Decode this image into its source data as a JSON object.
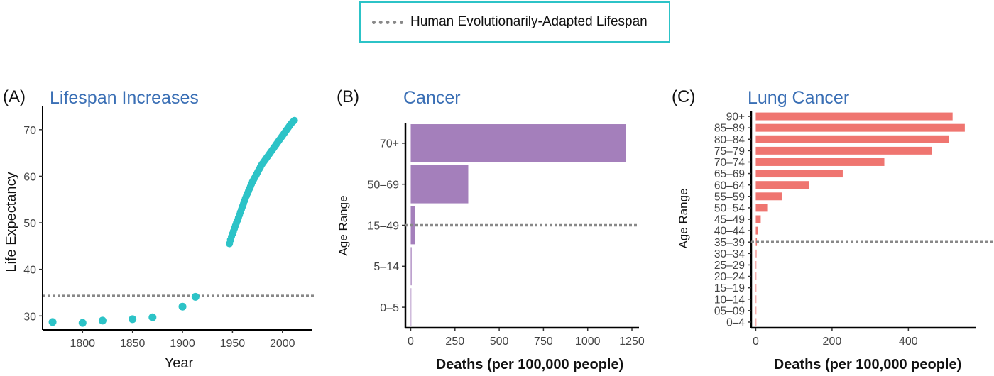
{
  "legend": {
    "label": "Human Evolutionarily-Adapted Lifespan",
    "line_color": "#888888",
    "border_color": "#2cc3c7"
  },
  "chart_data": [
    {
      "type": "scatter",
      "panel_label": "(A)",
      "title": "Lifespan Increases",
      "xlabel": "Year",
      "ylabel": "Life Expectancy",
      "xlim": [
        1760,
        2030
      ],
      "ylim": [
        27,
        75
      ],
      "xticks": [
        1800,
        1850,
        1900,
        1950,
        2000
      ],
      "yticks": [
        30,
        40,
        50,
        60,
        70
      ],
      "color": "#2cc3c7",
      "reference_line": 34.3,
      "points": [
        {
          "x": 1770,
          "y": 28.7
        },
        {
          "x": 1800,
          "y": 28.5
        },
        {
          "x": 1820,
          "y": 29.0
        },
        {
          "x": 1850,
          "y": 29.3
        },
        {
          "x": 1870,
          "y": 29.7
        },
        {
          "x": 1900,
          "y": 32.0
        },
        {
          "x": 1913,
          "y": 34.1
        },
        {
          "x": 1947,
          "y": 45.5
        },
        {
          "x": 1948,
          "y": 46.3
        },
        {
          "x": 1949,
          "y": 47.0
        },
        {
          "x": 1950,
          "y": 47.6
        },
        {
          "x": 1951,
          "y": 48.2
        },
        {
          "x": 1952,
          "y": 48.8
        },
        {
          "x": 1953,
          "y": 49.4
        },
        {
          "x": 1954,
          "y": 50.0
        },
        {
          "x": 1955,
          "y": 50.5
        },
        {
          "x": 1956,
          "y": 51.1
        },
        {
          "x": 1957,
          "y": 51.7
        },
        {
          "x": 1958,
          "y": 52.3
        },
        {
          "x": 1959,
          "y": 52.9
        },
        {
          "x": 1960,
          "y": 53.5
        },
        {
          "x": 1961,
          "y": 54.1
        },
        {
          "x": 1962,
          "y": 54.7
        },
        {
          "x": 1963,
          "y": 55.3
        },
        {
          "x": 1964,
          "y": 55.8
        },
        {
          "x": 1965,
          "y": 56.3
        },
        {
          "x": 1966,
          "y": 56.8
        },
        {
          "x": 1967,
          "y": 57.3
        },
        {
          "x": 1968,
          "y": 57.8
        },
        {
          "x": 1969,
          "y": 58.3
        },
        {
          "x": 1970,
          "y": 58.8
        },
        {
          "x": 1971,
          "y": 59.2
        },
        {
          "x": 1972,
          "y": 59.6
        },
        {
          "x": 1973,
          "y": 60.0
        },
        {
          "x": 1974,
          "y": 60.4
        },
        {
          "x": 1975,
          "y": 60.8
        },
        {
          "x": 1976,
          "y": 61.2
        },
        {
          "x": 1977,
          "y": 61.6
        },
        {
          "x": 1978,
          "y": 62.0
        },
        {
          "x": 1979,
          "y": 62.4
        },
        {
          "x": 1980,
          "y": 62.7
        },
        {
          "x": 1981,
          "y": 63.0
        },
        {
          "x": 1982,
          "y": 63.3
        },
        {
          "x": 1983,
          "y": 63.6
        },
        {
          "x": 1984,
          "y": 63.9
        },
        {
          "x": 1985,
          "y": 64.2
        },
        {
          "x": 1986,
          "y": 64.5
        },
        {
          "x": 1987,
          "y": 64.8
        },
        {
          "x": 1988,
          "y": 65.1
        },
        {
          "x": 1989,
          "y": 65.4
        },
        {
          "x": 1990,
          "y": 65.7
        },
        {
          "x": 1991,
          "y": 66.0
        },
        {
          "x": 1992,
          "y": 66.3
        },
        {
          "x": 1993,
          "y": 66.6
        },
        {
          "x": 1994,
          "y": 66.9
        },
        {
          "x": 1995,
          "y": 67.2
        },
        {
          "x": 1996,
          "y": 67.5
        },
        {
          "x": 1997,
          "y": 67.8
        },
        {
          "x": 1998,
          "y": 68.1
        },
        {
          "x": 1999,
          "y": 68.4
        },
        {
          "x": 2000,
          "y": 68.7
        },
        {
          "x": 2001,
          "y": 69.0
        },
        {
          "x": 2002,
          "y": 69.3
        },
        {
          "x": 2003,
          "y": 69.6
        },
        {
          "x": 2004,
          "y": 69.9
        },
        {
          "x": 2005,
          "y": 70.2
        },
        {
          "x": 2006,
          "y": 70.5
        },
        {
          "x": 2007,
          "y": 70.8
        },
        {
          "x": 2008,
          "y": 71.1
        },
        {
          "x": 2009,
          "y": 71.4
        },
        {
          "x": 2010,
          "y": 71.6
        },
        {
          "x": 2011,
          "y": 71.8
        },
        {
          "x": 2012,
          "y": 72.0
        }
      ]
    },
    {
      "type": "bar",
      "orientation": "horizontal",
      "panel_label": "(B)",
      "title": "Cancer",
      "xlabel": "Deaths (per 100,000 people)",
      "ylabel": "Age Range",
      "categories": [
        "0–5",
        "5–14",
        "15–49",
        "50–69",
        "70+"
      ],
      "values": [
        2,
        5,
        25,
        325,
        1215
      ],
      "xlim": [
        -30,
        1290
      ],
      "xticks": [
        0,
        250,
        500,
        750,
        1000,
        1250
      ],
      "color": "#a47fbb",
      "reference_category": "15–49"
    },
    {
      "type": "bar",
      "orientation": "horizontal",
      "panel_label": "(C)",
      "title": "Lung Cancer",
      "xlabel": "Deaths (per 100,000 people)",
      "ylabel": "Age Range",
      "categories": [
        "0–4",
        "05–09",
        "10–14",
        "15–19",
        "20–24",
        "25–29",
        "30–34",
        "35–39",
        "40–44",
        "45–49",
        "50–54",
        "55–59",
        "60–64",
        "65–69",
        "70–74",
        "75–79",
        "80–84",
        "85–89",
        "90+"
      ],
      "values": [
        0.2,
        0.2,
        0.3,
        0.5,
        0.8,
        1.2,
        2,
        3,
        6,
        13,
        30,
        68,
        140,
        228,
        337,
        462,
        506,
        548,
        516
      ],
      "xlim": [
        -12,
        578
      ],
      "xticks": [
        0,
        200,
        400
      ],
      "color": "#ef7570",
      "reference_category": "35–39"
    }
  ]
}
